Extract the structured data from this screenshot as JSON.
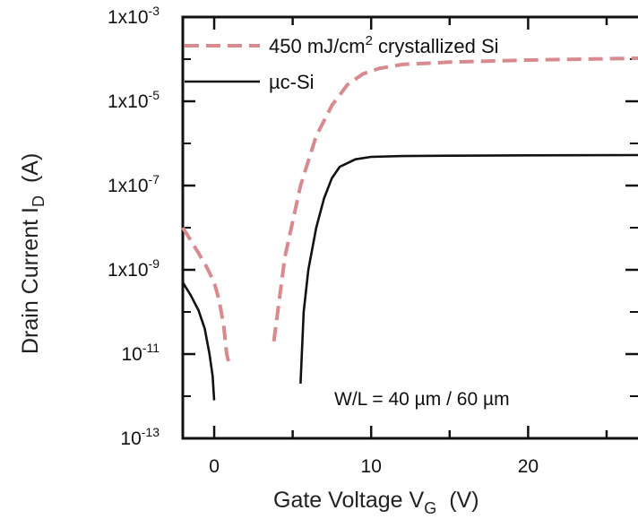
{
  "chart_data": {
    "type": "line",
    "title": "",
    "xlabel": "Gate Voltage V",
    "xlabel_subscript": "G",
    "xlabel_unit": "(V)",
    "ylabel": "Drain Current I",
    "ylabel_subscript": "D",
    "ylabel_unit": "(A)",
    "x_scale": "linear",
    "y_scale": "log",
    "xlim": [
      -2,
      27
    ],
    "ylim": [
      1e-13,
      0.001
    ],
    "x_ticks": [
      {
        "value": 0,
        "label": "0"
      },
      {
        "value": 10,
        "label": "10"
      },
      {
        "value": 20,
        "label": "20"
      }
    ],
    "y_ticks": [
      {
        "exp": -3,
        "mantissa": "1x10",
        "sup": "-3"
      },
      {
        "exp": -5,
        "mantissa": "1x10",
        "sup": "-5"
      },
      {
        "exp": -7,
        "mantissa": "1x10",
        "sup": "-7"
      },
      {
        "exp": -9,
        "mantissa": "1x10",
        "sup": "-9"
      },
      {
        "exp": -11,
        "mantissa": "10",
        "sup": "-11"
      },
      {
        "exp": -13,
        "mantissa": "10",
        "sup": "-13"
      }
    ],
    "grid": false,
    "legend_position": "top-left",
    "series": [
      {
        "name": "450 mJ/cm",
        "name_sup": "2",
        "name_suffix": " crystallized Si",
        "style": "dashed",
        "color": "#d98a8e",
        "segments": [
          {
            "x": [
              -2,
              -1.5,
              -1,
              -0.5,
              0,
              0.3,
              0.6,
              0.8,
              1.0
            ],
            "y": [
              1e-08,
              5e-09,
              2.5e-09,
              1.2e-09,
              5e-10,
              2e-10,
              5e-11,
              1e-11,
              5e-12
            ]
          },
          {
            "x": [
              3.8,
              4.5,
              5.5,
              6.5,
              7.5,
              8.5,
              9.5,
              10.5,
              12,
              15,
              20,
              27
            ],
            "y": [
              2e-11,
              2e-09,
              1e-07,
              1.5e-06,
              8e-06,
              2.5e-05,
              4.5e-05,
              6e-05,
              7.5e-05,
              8.5e-05,
              9.5e-05,
              0.000105
            ]
          }
        ]
      },
      {
        "name": "µc-Si",
        "style": "solid",
        "color": "#111111",
        "segments": [
          {
            "x": [
              -2,
              -1.5,
              -1,
              -0.6,
              -0.3,
              -0.1,
              0.0
            ],
            "y": [
              5e-10,
              2.5e-10,
              1.1e-10,
              4e-11,
              1e-11,
              3e-12,
              8e-13
            ]
          },
          {
            "x": [
              5.5,
              5.7,
              6.0,
              6.5,
              7.0,
              7.5,
              8.0,
              9.0,
              10,
              12,
              15,
              20,
              27
            ],
            "y": [
              2e-12,
              1e-10,
              1e-09,
              1e-08,
              5e-08,
              1.5e-07,
              2.8e-07,
              4.2e-07,
              4.8e-07,
              5e-07,
              5.1e-07,
              5.2e-07,
              5.3e-07
            ]
          }
        ]
      }
    ],
    "annotations": [
      {
        "text": "W/L = 40 µm / 60 µm",
        "position": "bottom-right"
      }
    ]
  }
}
